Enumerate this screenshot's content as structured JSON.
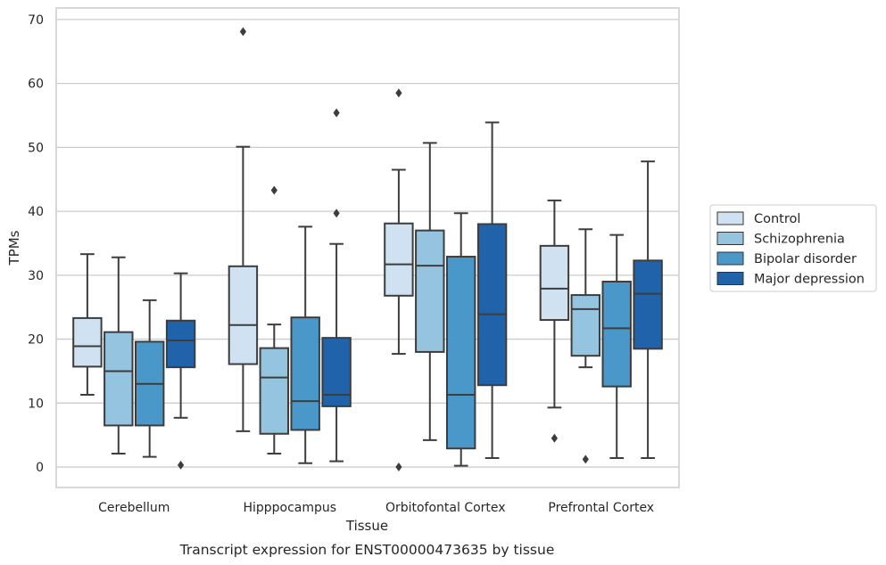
{
  "chart_data": {
    "type": "boxplot",
    "xlabel": "Tissue",
    "ylabel": "TPMs",
    "caption": "Transcript expression for ENST00000473635 by tissue",
    "ylim": [
      -3.2,
      71.8
    ],
    "yticks": [
      0,
      10,
      20,
      30,
      40,
      50,
      60,
      70
    ],
    "grid": true,
    "legend_position": "right",
    "categories": [
      "Cerebellum",
      "Hipppocampus",
      "Orbitofontal Cortex",
      "Prefrontal Cortex"
    ],
    "series": [
      {
        "name": "Control",
        "color": "#d0e1f2",
        "boxes": [
          {
            "whislo": 11.3,
            "q1": 15.7,
            "med": 18.9,
            "q3": 23.3,
            "whishi": 33.3,
            "fliers": []
          },
          {
            "whislo": 5.6,
            "q1": 16.1,
            "med": 22.2,
            "q3": 31.4,
            "whishi": 50.1,
            "fliers": [
              68.1
            ]
          },
          {
            "whislo": 17.7,
            "q1": 26.8,
            "med": 31.7,
            "q3": 38.1,
            "whishi": 46.5,
            "fliers": [
              0.0,
              58.5
            ]
          },
          {
            "whislo": 9.3,
            "q1": 23.0,
            "med": 27.9,
            "q3": 34.6,
            "whishi": 41.7,
            "fliers": [
              4.5
            ]
          }
        ]
      },
      {
        "name": "Schizophrenia",
        "color": "#94c4df",
        "boxes": [
          {
            "whislo": 2.1,
            "q1": 6.5,
            "med": 15.0,
            "q3": 21.1,
            "whishi": 32.8,
            "fliers": []
          },
          {
            "whislo": 2.1,
            "q1": 5.2,
            "med": 14.0,
            "q3": 18.6,
            "whishi": 22.3,
            "fliers": [
              43.3
            ]
          },
          {
            "whislo": 4.2,
            "q1": 18.0,
            "med": 31.5,
            "q3": 37.0,
            "whishi": 50.7,
            "fliers": []
          },
          {
            "whislo": 15.6,
            "q1": 17.4,
            "med": 24.7,
            "q3": 26.9,
            "whishi": 37.2,
            "fliers": [
              1.2
            ]
          }
        ]
      },
      {
        "name": "Bipolar disorder",
        "color": "#4a98c9",
        "boxes": [
          {
            "whislo": 1.6,
            "q1": 6.5,
            "med": 13.0,
            "q3": 19.6,
            "whishi": 26.1,
            "fliers": []
          },
          {
            "whislo": 0.6,
            "q1": 5.8,
            "med": 10.3,
            "q3": 23.4,
            "whishi": 37.6,
            "fliers": []
          },
          {
            "whislo": 0.2,
            "q1": 2.9,
            "med": 11.3,
            "q3": 32.9,
            "whishi": 39.7,
            "fliers": []
          },
          {
            "whislo": 1.4,
            "q1": 12.6,
            "med": 21.7,
            "q3": 29.0,
            "whishi": 36.3,
            "fliers": []
          }
        ]
      },
      {
        "name": "Major depression",
        "color": "#2163aa",
        "boxes": [
          {
            "whislo": 7.7,
            "q1": 15.6,
            "med": 19.8,
            "q3": 22.9,
            "whishi": 30.3,
            "fliers": [
              0.3
            ]
          },
          {
            "whislo": 0.9,
            "q1": 9.5,
            "med": 11.3,
            "q3": 20.2,
            "whishi": 34.9,
            "fliers": [
              39.7,
              55.4
            ]
          },
          {
            "whislo": 1.4,
            "q1": 12.8,
            "med": 23.9,
            "q3": 38.0,
            "whishi": 53.9,
            "fliers": []
          },
          {
            "whislo": 1.4,
            "q1": 18.5,
            "med": 27.1,
            "q3": 32.3,
            "whishi": 47.8,
            "fliers": []
          }
        ]
      }
    ]
  }
}
